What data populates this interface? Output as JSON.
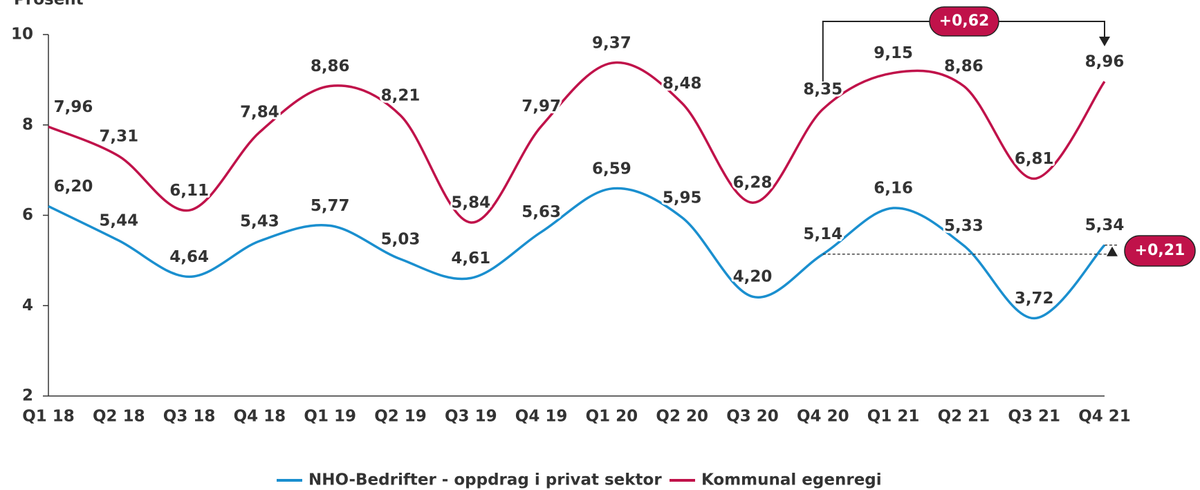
{
  "chart_data": {
    "type": "line",
    "ylabel": "Prosent",
    "categories": [
      "Q1 18",
      "Q2 18",
      "Q3 18",
      "Q4 18",
      "Q1 19",
      "Q2 19",
      "Q3 19",
      "Q4 19",
      "Q1 20",
      "Q2 20",
      "Q3 20",
      "Q4 20",
      "Q1 21",
      "Q2 21",
      "Q3 21",
      "Q4 21"
    ],
    "series": [
      {
        "name": "NHO-Bedrifter - oppdrag i privat sektor",
        "color": "#1a8fcf",
        "values": [
          6.2,
          5.44,
          4.64,
          5.43,
          5.77,
          5.03,
          4.61,
          5.63,
          6.59,
          5.95,
          4.2,
          5.14,
          6.16,
          5.33,
          3.72,
          5.34
        ],
        "value_labels": [
          "6,20",
          "5,44",
          "4,64",
          "5,43",
          "5,77",
          "5,03",
          "4,61",
          "5,63",
          "6,59",
          "5,95",
          "4,20",
          "5,14",
          "6,16",
          "5,33",
          "3,72",
          "5,34"
        ]
      },
      {
        "name": "Kommunal egenregi",
        "color": "#c0124a",
        "values": [
          7.96,
          7.31,
          6.11,
          7.84,
          8.86,
          8.21,
          5.84,
          7.97,
          9.37,
          8.48,
          6.28,
          8.35,
          9.15,
          8.86,
          6.81,
          8.96
        ],
        "value_labels": [
          "7,96",
          "7,31",
          "6,11",
          "7,84",
          "8,86",
          "8,21",
          "5,84",
          "7,97",
          "9,37",
          "8,48",
          "6,28",
          "8,35",
          "9,15",
          "8,86",
          "6,81",
          "8,96"
        ]
      }
    ],
    "ylim": [
      2,
      10
    ],
    "yticks": [
      2,
      4,
      6,
      8,
      10
    ],
    "annotations": [
      "+0,62",
      "+0,21"
    ],
    "legend": "bottom"
  }
}
